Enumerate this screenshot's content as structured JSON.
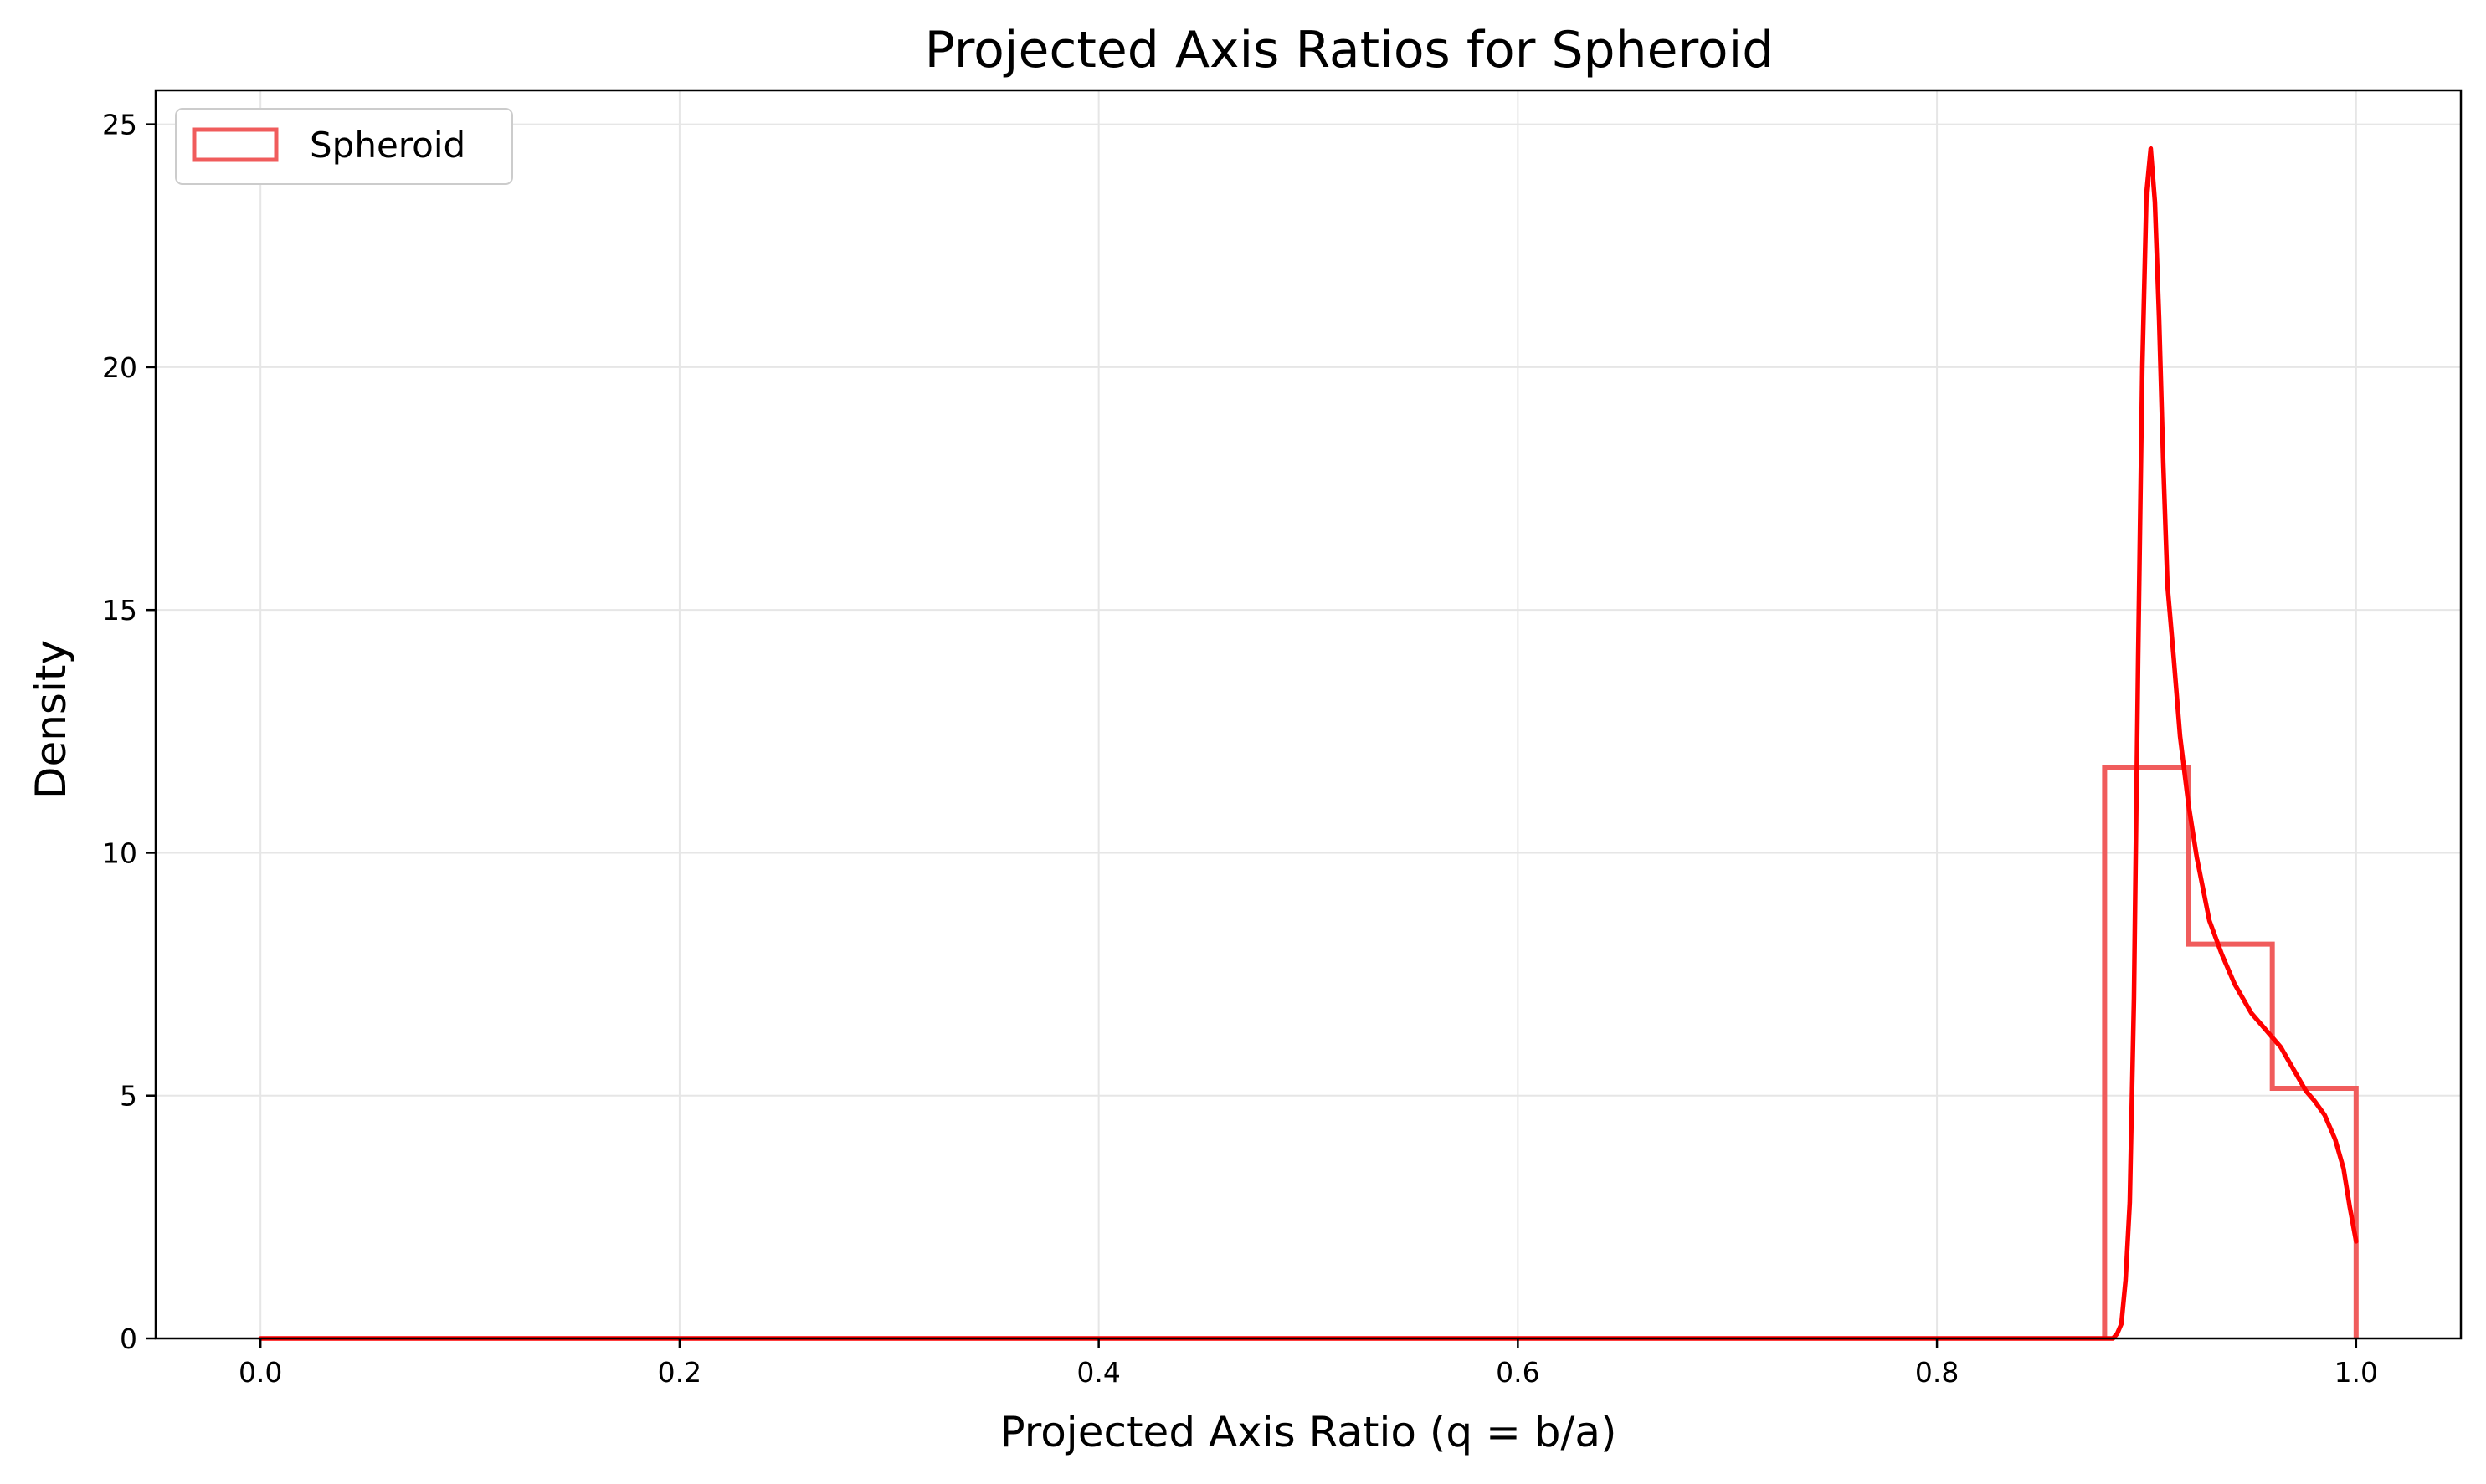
{
  "chart_data": {
    "type": "histogram+line",
    "title": "Projected Axis Ratios for Spheroid",
    "xlabel": "Projected Axis Ratio (q = b/a)",
    "ylabel": "Density",
    "xlim": [
      -0.05,
      1.05
    ],
    "ylim": [
      0,
      25.7
    ],
    "xticks": [
      "0.0",
      "0.2",
      "0.4",
      "0.6",
      "0.8",
      "1.0"
    ],
    "yticks": [
      "0",
      "5",
      "10",
      "15",
      "20",
      "25"
    ],
    "grid": true,
    "legend": {
      "placement": "top-left",
      "entries": [
        "Spheroid"
      ]
    },
    "colors": {
      "histogram": "#f05c5c",
      "curve": "#ff0000",
      "grid": "#e6e6e6"
    },
    "series": [
      {
        "name": "Spheroid",
        "kind": "histogram-step",
        "bins": [
          {
            "x0": 0.88,
            "x1": 0.92,
            "value": 11.75
          },
          {
            "x0": 0.92,
            "x1": 0.96,
            "value": 8.12
          },
          {
            "x0": 0.96,
            "x1": 1.0,
            "value": 5.15
          }
        ]
      },
      {
        "kind": "density-curve",
        "x": [
          0.0,
          0.88,
          0.884,
          0.886,
          0.888,
          0.89,
          0.892,
          0.894,
          0.896,
          0.898,
          0.9,
          0.902,
          0.904,
          0.906,
          0.908,
          0.91,
          0.913,
          0.916,
          0.92,
          0.924,
          0.93,
          0.936,
          0.942,
          0.95,
          0.956,
          0.96,
          0.964,
          0.968,
          0.972,
          0.976,
          0.98,
          0.985,
          0.99,
          0.994,
          0.997,
          1.0
        ],
        "y": [
          0.0,
          0.0,
          0.0,
          0.1,
          0.3,
          1.2,
          2.8,
          7.0,
          14.0,
          20.0,
          23.6,
          24.5,
          23.4,
          21.0,
          18.0,
          15.5,
          14.0,
          12.4,
          11.0,
          9.9,
          8.6,
          7.9,
          7.3,
          6.7,
          6.4,
          6.2,
          6.0,
          5.7,
          5.4,
          5.1,
          4.9,
          4.6,
          4.1,
          3.5,
          2.7,
          2.0
        ]
      }
    ]
  }
}
